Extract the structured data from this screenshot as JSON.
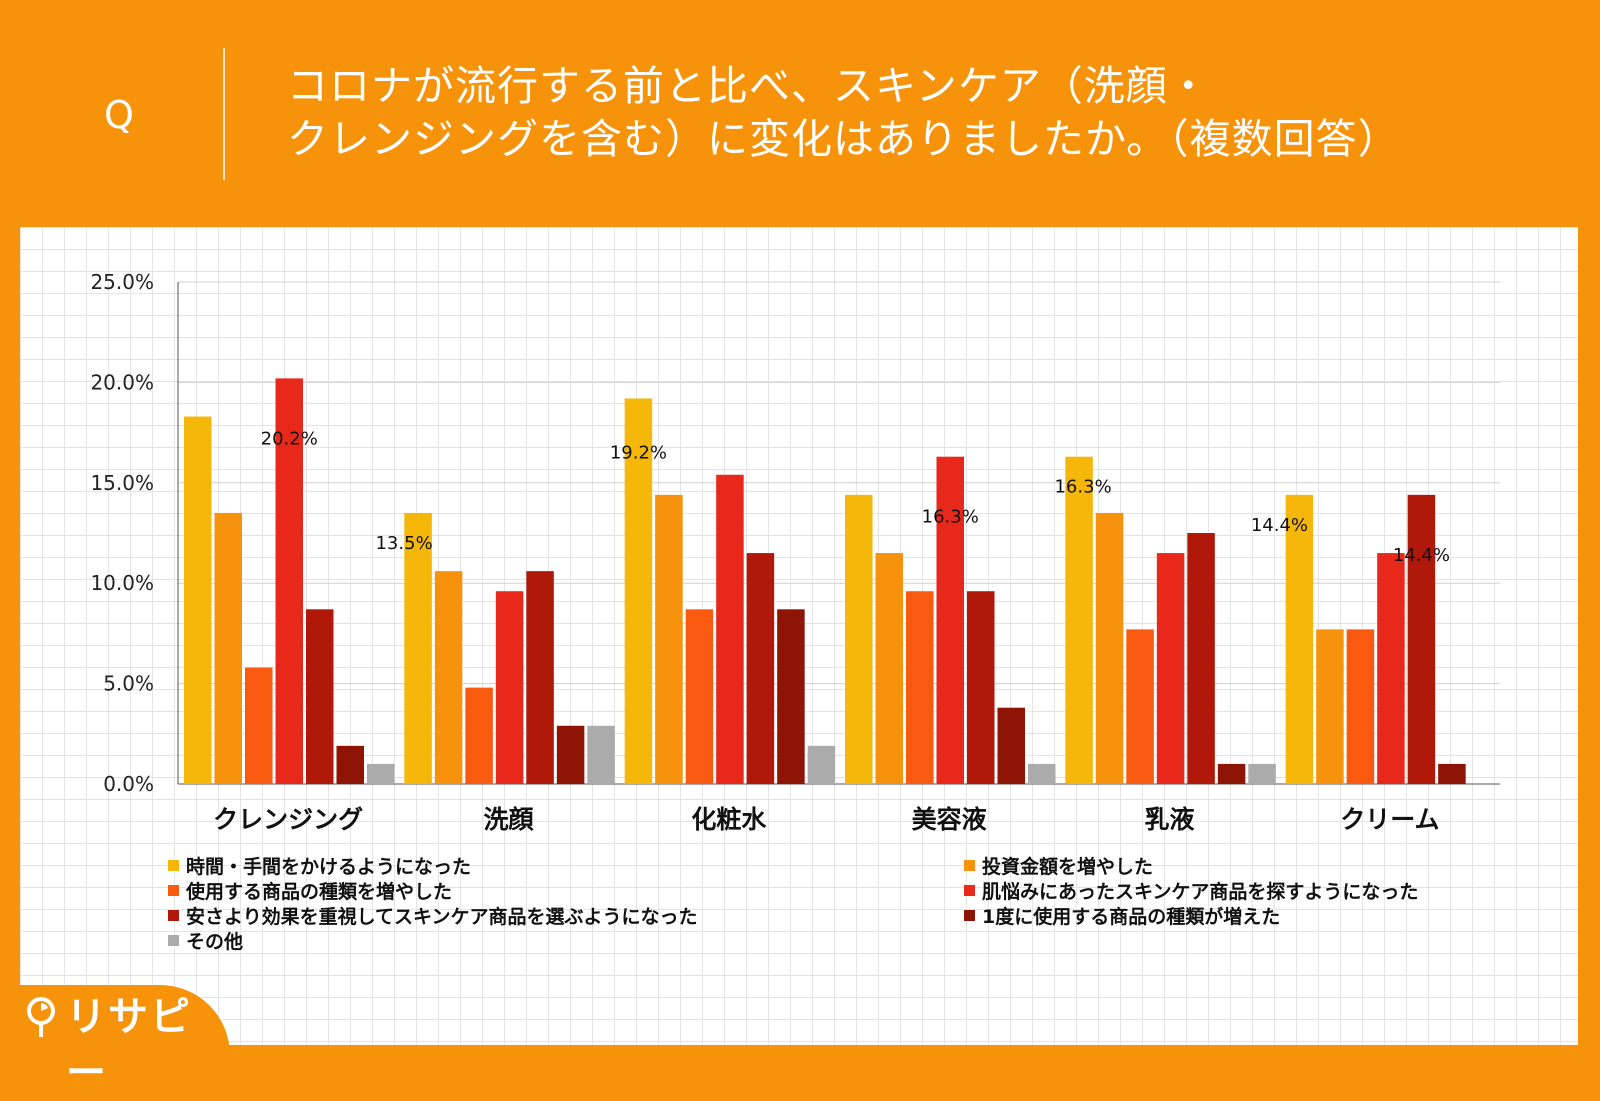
{
  "question": {
    "mark": "Q",
    "title_line1": "コロナが流行する前と比べ、スキンケア（洗顔・",
    "title_line2": "クレンジングを含む）に変化はありましたか。（複数回答）"
  },
  "logo": {
    "text": "リサピー",
    "icon": "pie-pin-icon"
  },
  "colors": {
    "background": "#f7930a",
    "series": [
      "#f5b70a",
      "#f6920c",
      "#fa5a10",
      "#e8281a",
      "#b0180a",
      "#8e1406",
      "#ababab"
    ]
  },
  "chart_data": {
    "type": "bar",
    "title": "コロナが流行する前と比べ、スキンケア（洗顔・クレンジングを含む）に変化はありましたか。（複数回答）",
    "xlabel": "",
    "ylabel": "",
    "ylim": [
      0,
      25
    ],
    "yticks": [
      "0.0%",
      "5.0%",
      "10.0%",
      "15.0%",
      "20.0%",
      "25.0%"
    ],
    "grid": true,
    "legend_position": "bottom",
    "categories": [
      "クレンジング",
      "洗顔",
      "化粧水",
      "美容液",
      "乳液",
      "クリーム"
    ],
    "series": [
      {
        "name": "時間・手間をかけるようになった",
        "values": [
          18.3,
          13.5,
          19.2,
          14.4,
          16.3,
          14.4
        ]
      },
      {
        "name": "投資金額を増やした",
        "values": [
          13.5,
          10.6,
          14.4,
          11.5,
          13.5,
          7.7
        ]
      },
      {
        "name": "使用する商品の種類を増やした",
        "values": [
          5.8,
          4.8,
          8.7,
          9.6,
          7.7,
          7.7
        ]
      },
      {
        "name": "肌悩みにあったスキンケア商品を探すようになった",
        "values": [
          20.2,
          9.6,
          15.4,
          16.3,
          11.5,
          11.5
        ]
      },
      {
        "name": "安さより効果を重視してスキンケア商品を選ぶようになった",
        "values": [
          8.7,
          10.6,
          11.5,
          9.6,
          12.5,
          14.4
        ]
      },
      {
        "name": "1度に使用する商品の種類が増えた",
        "values": [
          1.9,
          2.9,
          8.7,
          3.8,
          1.0,
          1.0
        ]
      },
      {
        "name": "その他",
        "values": [
          1.0,
          2.9,
          1.9,
          1.0,
          1.0,
          0
        ]
      }
    ],
    "annotations": [
      {
        "category": 0,
        "series": 3,
        "text": "20.2%"
      },
      {
        "category": 1,
        "series": 0,
        "text": "13.5%"
      },
      {
        "category": 2,
        "series": 0,
        "text": "19.2%"
      },
      {
        "category": 3,
        "series": 3,
        "text": "16.3%"
      },
      {
        "category": 4,
        "series": 0,
        "text": "16.3%"
      },
      {
        "category": 5,
        "series": 0,
        "text": "14.4%"
      },
      {
        "category": 5,
        "series": 4,
        "text": "14.4%"
      }
    ]
  }
}
